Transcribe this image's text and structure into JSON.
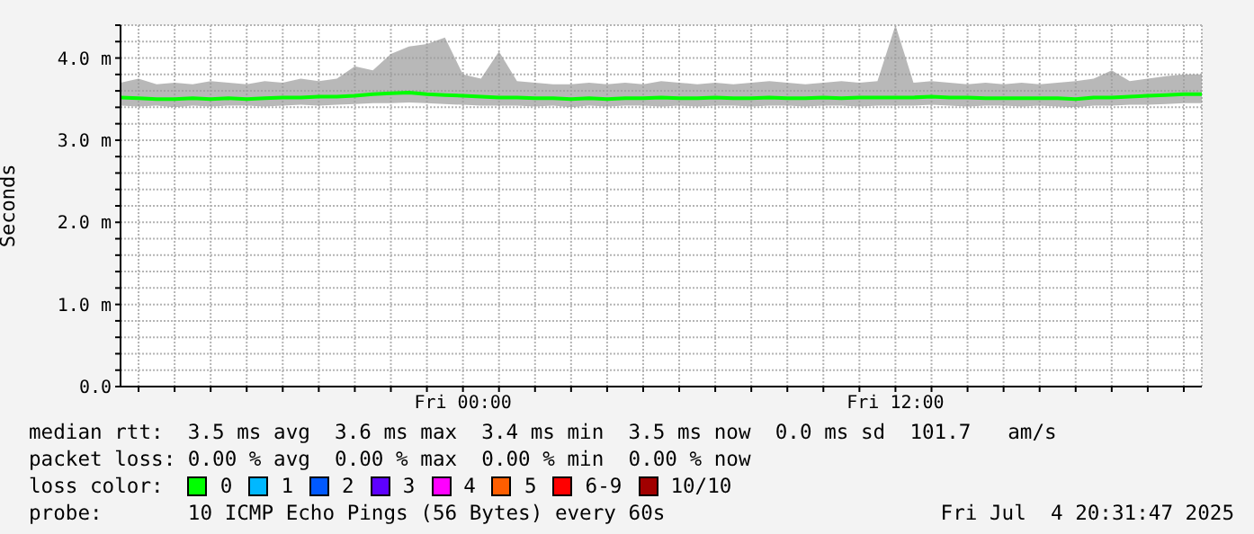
{
  "chart_data": {
    "type": "line",
    "ylabel": "Seconds",
    "x": [
      "2025-07-03T14:30",
      "2025-07-03T15:00",
      "2025-07-03T15:30",
      "2025-07-03T16:00",
      "2025-07-03T16:30",
      "2025-07-03T17:00",
      "2025-07-03T17:30",
      "2025-07-03T18:00",
      "2025-07-03T18:30",
      "2025-07-03T19:00",
      "2025-07-03T19:30",
      "2025-07-03T20:00",
      "2025-07-03T20:30",
      "2025-07-03T21:00",
      "2025-07-03T21:30",
      "2025-07-03T22:00",
      "2025-07-03T22:30",
      "2025-07-03T23:00",
      "2025-07-03T23:30",
      "2025-07-04T00:00",
      "2025-07-04T00:30",
      "2025-07-04T01:00",
      "2025-07-04T01:30",
      "2025-07-04T02:00",
      "2025-07-04T02:30",
      "2025-07-04T03:00",
      "2025-07-04T03:30",
      "2025-07-04T04:00",
      "2025-07-04T04:30",
      "2025-07-04T05:00",
      "2025-07-04T05:30",
      "2025-07-04T06:00",
      "2025-07-04T06:30",
      "2025-07-04T07:00",
      "2025-07-04T07:30",
      "2025-07-04T08:00",
      "2025-07-04T08:30",
      "2025-07-04T09:00",
      "2025-07-04T09:30",
      "2025-07-04T10:00",
      "2025-07-04T10:30",
      "2025-07-04T11:00",
      "2025-07-04T11:30",
      "2025-07-04T12:00",
      "2025-07-04T12:30",
      "2025-07-04T13:00",
      "2025-07-04T13:30",
      "2025-07-04T14:00",
      "2025-07-04T14:30",
      "2025-07-04T15:00",
      "2025-07-04T15:30",
      "2025-07-04T16:00",
      "2025-07-04T16:30",
      "2025-07-04T17:00",
      "2025-07-04T17:30",
      "2025-07-04T18:00",
      "2025-07-04T18:30",
      "2025-07-04T19:00",
      "2025-07-04T19:30",
      "2025-07-04T20:00",
      "2025-07-04T20:30"
    ],
    "series": [
      {
        "name": "0",
        "color": "#00ff00",
        "values": [
          3.52,
          3.51,
          3.5,
          3.5,
          3.51,
          3.5,
          3.51,
          3.5,
          3.51,
          3.52,
          3.52,
          3.53,
          3.53,
          3.54,
          3.56,
          3.57,
          3.58,
          3.56,
          3.55,
          3.54,
          3.53,
          3.52,
          3.52,
          3.51,
          3.51,
          3.5,
          3.51,
          3.5,
          3.51,
          3.51,
          3.52,
          3.51,
          3.51,
          3.52,
          3.51,
          3.51,
          3.52,
          3.51,
          3.51,
          3.52,
          3.51,
          3.52,
          3.52,
          3.52,
          3.52,
          3.53,
          3.52,
          3.52,
          3.51,
          3.51,
          3.51,
          3.51,
          3.51,
          3.5,
          3.52,
          3.52,
          3.53,
          3.54,
          3.55,
          3.56,
          3.56
        ],
        "lower": [
          3.42,
          3.41,
          3.42,
          3.4,
          3.42,
          3.41,
          3.42,
          3.42,
          3.41,
          3.42,
          3.43,
          3.42,
          3.43,
          3.44,
          3.45,
          3.45,
          3.46,
          3.45,
          3.44,
          3.43,
          3.42,
          3.42,
          3.42,
          3.41,
          3.42,
          3.4,
          3.42,
          3.41,
          3.42,
          3.42,
          3.41,
          3.42,
          3.41,
          3.42,
          3.42,
          3.41,
          3.42,
          3.42,
          3.41,
          3.42,
          3.42,
          3.41,
          3.42,
          3.42,
          3.42,
          3.43,
          3.42,
          3.41,
          3.42,
          3.42,
          3.41,
          3.42,
          3.41,
          3.4,
          3.42,
          3.42,
          3.43,
          3.43,
          3.44,
          3.45,
          3.45
        ],
        "upper": [
          3.7,
          3.75,
          3.68,
          3.7,
          3.68,
          3.72,
          3.7,
          3.68,
          3.72,
          3.7,
          3.75,
          3.72,
          3.75,
          3.9,
          3.85,
          4.05,
          4.14,
          4.17,
          4.25,
          3.8,
          3.75,
          4.08,
          3.72,
          3.7,
          3.68,
          3.68,
          3.7,
          3.68,
          3.7,
          3.68,
          3.72,
          3.7,
          3.68,
          3.7,
          3.68,
          3.7,
          3.72,
          3.7,
          3.68,
          3.7,
          3.72,
          3.7,
          3.72,
          4.4,
          3.7,
          3.72,
          3.7,
          3.68,
          3.7,
          3.68,
          3.7,
          3.68,
          3.7,
          3.72,
          3.75,
          3.85,
          3.72,
          3.75,
          3.78,
          3.8,
          3.8
        ]
      },
      {
        "name": "1",
        "color": "#00b8ff",
        "values": [
          null,
          null,
          null,
          null,
          null,
          null,
          null,
          null,
          null,
          null,
          null,
          null,
          null,
          null,
          null,
          null,
          null,
          null,
          null,
          null,
          null,
          null,
          null,
          null,
          null,
          null,
          null,
          null,
          null,
          null,
          null,
          null,
          null,
          null,
          null,
          null,
          null,
          null,
          null,
          null,
          null,
          null,
          null,
          null,
          null,
          null,
          null,
          null,
          null,
          null,
          null,
          null,
          null,
          null,
          null,
          null,
          null,
          null,
          null,
          null,
          null
        ]
      },
      {
        "name": "2",
        "color": "#0059ff",
        "values": [
          null,
          null,
          null,
          null,
          null,
          null,
          null,
          null,
          null,
          null,
          null,
          null,
          null,
          null,
          null,
          null,
          null,
          null,
          null,
          null,
          null,
          null,
          null,
          null,
          null,
          null,
          null,
          null,
          null,
          null,
          null,
          null,
          null,
          null,
          null,
          null,
          null,
          null,
          null,
          null,
          null,
          null,
          null,
          null,
          null,
          null,
          null,
          null,
          null,
          null,
          null,
          null,
          null,
          null,
          null,
          null,
          null,
          null,
          null,
          null,
          null
        ]
      },
      {
        "name": "3",
        "color": "#5e00ff",
        "values": [
          null,
          null,
          null,
          null,
          null,
          null,
          null,
          null,
          null,
          null,
          null,
          null,
          null,
          null,
          null,
          null,
          null,
          null,
          null,
          null,
          null,
          null,
          null,
          null,
          null,
          null,
          null,
          null,
          null,
          null,
          null,
          null,
          null,
          null,
          null,
          null,
          null,
          null,
          null,
          null,
          null,
          null,
          null,
          null,
          null,
          null,
          null,
          null,
          null,
          null,
          null,
          null,
          null,
          null,
          null,
          null,
          null,
          null,
          null,
          null,
          null
        ]
      },
      {
        "name": "4",
        "color": "#ff00ff",
        "values": [
          null,
          null,
          null,
          null,
          null,
          null,
          null,
          null,
          null,
          null,
          null,
          null,
          null,
          null,
          null,
          null,
          null,
          null,
          null,
          null,
          null,
          null,
          null,
          null,
          null,
          null,
          null,
          null,
          null,
          null,
          null,
          null,
          null,
          null,
          null,
          null,
          null,
          null,
          null,
          null,
          null,
          null,
          null,
          null,
          null,
          null,
          null,
          null,
          null,
          null,
          null,
          null,
          null,
          null,
          null,
          null,
          null,
          null,
          null,
          null,
          null
        ]
      },
      {
        "name": "5",
        "color": "#ff5e00",
        "values": [
          null,
          null,
          null,
          null,
          null,
          null,
          null,
          null,
          null,
          null,
          null,
          null,
          null,
          null,
          null,
          null,
          null,
          null,
          null,
          null,
          null,
          null,
          null,
          null,
          null,
          null,
          null,
          null,
          null,
          null,
          null,
          null,
          null,
          null,
          null,
          null,
          null,
          null,
          null,
          null,
          null,
          null,
          null,
          null,
          null,
          null,
          null,
          null,
          null,
          null,
          null,
          null,
          null,
          null,
          null,
          null,
          null,
          null,
          null,
          null,
          null
        ]
      },
      {
        "name": "6-9",
        "color": "#ff0000",
        "values": [
          null,
          null,
          null,
          null,
          null,
          null,
          null,
          null,
          null,
          null,
          null,
          null,
          null,
          null,
          null,
          null,
          null,
          null,
          null,
          null,
          null,
          null,
          null,
          null,
          null,
          null,
          null,
          null,
          null,
          null,
          null,
          null,
          null,
          null,
          null,
          null,
          null,
          null,
          null,
          null,
          null,
          null,
          null,
          null,
          null,
          null,
          null,
          null,
          null,
          null,
          null,
          null,
          null,
          null,
          null,
          null,
          null,
          null,
          null,
          null,
          null
        ]
      },
      {
        "name": "10/10",
        "color": "#a10000",
        "values": [
          null,
          null,
          null,
          null,
          null,
          null,
          null,
          null,
          null,
          null,
          null,
          null,
          null,
          null,
          null,
          null,
          null,
          null,
          null,
          null,
          null,
          null,
          null,
          null,
          null,
          null,
          null,
          null,
          null,
          null,
          null,
          null,
          null,
          null,
          null,
          null,
          null,
          null,
          null,
          null,
          null,
          null,
          null,
          null,
          null,
          null,
          null,
          null,
          null,
          null,
          null,
          null,
          null,
          null,
          null,
          null,
          null,
          null,
          null,
          null,
          null
        ]
      }
    ],
    "xlim": [
      "2025-07-03T14:30",
      "2025-07-04T20:30"
    ],
    "xticks": [
      {
        "value": "2025-07-03T15:00",
        "label": null
      },
      {
        "value": "2025-07-03T16:00",
        "label": null
      },
      {
        "value": "2025-07-03T17:00",
        "label": null
      },
      {
        "value": "2025-07-03T18:00",
        "label": null
      },
      {
        "value": "2025-07-03T19:00",
        "label": null
      },
      {
        "value": "2025-07-03T20:00",
        "label": null
      },
      {
        "value": "2025-07-03T21:00",
        "label": null
      },
      {
        "value": "2025-07-03T22:00",
        "label": null
      },
      {
        "value": "2025-07-03T23:00",
        "label": null
      },
      {
        "value": "2025-07-04T00:00",
        "label": "Fri 00:00"
      },
      {
        "value": "2025-07-04T01:00",
        "label": null
      },
      {
        "value": "2025-07-04T02:00",
        "label": null
      },
      {
        "value": "2025-07-04T03:00",
        "label": null
      },
      {
        "value": "2025-07-04T04:00",
        "label": null
      },
      {
        "value": "2025-07-04T05:00",
        "label": null
      },
      {
        "value": "2025-07-04T06:00",
        "label": null
      },
      {
        "value": "2025-07-04T07:00",
        "label": null
      },
      {
        "value": "2025-07-04T08:00",
        "label": null
      },
      {
        "value": "2025-07-04T09:00",
        "label": null
      },
      {
        "value": "2025-07-04T10:00",
        "label": null
      },
      {
        "value": "2025-07-04T11:00",
        "label": null
      },
      {
        "value": "2025-07-04T12:00",
        "label": "Fri 12:00"
      },
      {
        "value": "2025-07-04T13:00",
        "label": null
      },
      {
        "value": "2025-07-04T14:00",
        "label": null
      },
      {
        "value": "2025-07-04T15:00",
        "label": null
      },
      {
        "value": "2025-07-04T16:00",
        "label": null
      },
      {
        "value": "2025-07-04T17:00",
        "label": null
      },
      {
        "value": "2025-07-04T18:00",
        "label": null
      },
      {
        "value": "2025-07-04T19:00",
        "label": null
      },
      {
        "value": "2025-07-04T20:00",
        "label": null
      }
    ],
    "ylim": [
      0,
      4.4
    ],
    "yticks": [
      {
        "value": 0,
        "label": "0.0"
      },
      {
        "value": 0.2,
        "label": null
      },
      {
        "value": 0.4,
        "label": null
      },
      {
        "value": 0.6,
        "label": null
      },
      {
        "value": 0.8,
        "label": null
      },
      {
        "value": 1,
        "label": "1.0 m"
      },
      {
        "value": 1.2,
        "label": null
      },
      {
        "value": 1.4,
        "label": null
      },
      {
        "value": 1.6,
        "label": null
      },
      {
        "value": 1.8,
        "label": null
      },
      {
        "value": 2,
        "label": "2.0 m"
      },
      {
        "value": 2.2,
        "label": null
      },
      {
        "value": 2.4,
        "label": null
      },
      {
        "value": 2.6,
        "label": null
      },
      {
        "value": 2.8,
        "label": null
      },
      {
        "value": 3,
        "label": "3.0 m"
      },
      {
        "value": 3.2,
        "label": null
      },
      {
        "value": 3.4,
        "label": null
      },
      {
        "value": 3.6,
        "label": null
      },
      {
        "value": 3.8,
        "label": null
      },
      {
        "value": 4,
        "label": "4.0 m"
      },
      {
        "value": 4.2,
        "label": null
      },
      {
        "value": 4.4,
        "label": null
      }
    ],
    "grid": true,
    "legend": "bottom",
    "legend_title": "loss color:",
    "marker": "none",
    "line_style": "solid",
    "annotations": [
      "median rtt:  3.5 ms avg  3.6 ms max  3.4 ms min  3.5 ms now  0.0 ms sd  101.7   am/s",
      "packet loss: 0.00 % avg  0.00 % max  0.00 % min  0.00 % now",
      "probe:       10 ICMP Echo Pings (56 Bytes) every 60s",
      "Fri Jul  4 20:31:47 2025"
    ]
  }
}
